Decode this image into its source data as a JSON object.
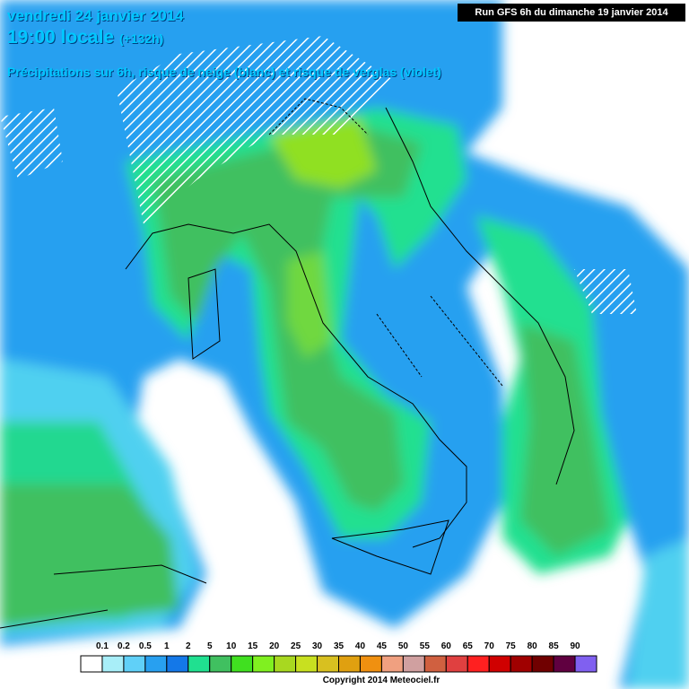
{
  "header": {
    "date": "vendredi 24 janvier 2014",
    "time": "19:00 locale",
    "lead": "(+132h)",
    "subtitle": "Précipitations sur 6h, risque de neige (blanc) et risque de verglas (violet)",
    "run": "Run GFS 6h du dimanche 19 janvier 2014"
  },
  "legend": {
    "labels": [
      "0.1",
      "0.2",
      "0.5",
      "1",
      "2",
      "5",
      "10",
      "15",
      "20",
      "25",
      "30",
      "35",
      "40",
      "45",
      "50",
      "55",
      "60",
      "65",
      "70",
      "75",
      "80",
      "85",
      "90"
    ],
    "colors": [
      "#ffffff",
      "#a8eef8",
      "#60d0f8",
      "#28a0f0",
      "#1478e8",
      "#20e090",
      "#40c060",
      "#40e020",
      "#80f020",
      "#a8d820",
      "#c8e020",
      "#d8c020",
      "#e0a010",
      "#f09010",
      "#f0a080",
      "#d0a0a0",
      "#d06040",
      "#e04040",
      "#ff2020",
      "#d00000",
      "#a00000",
      "#700000",
      "#600040",
      "#8060f0",
      "#f050f0"
    ]
  },
  "footer": {
    "copyright": "Copyright 2014 Meteociel.fr"
  }
}
